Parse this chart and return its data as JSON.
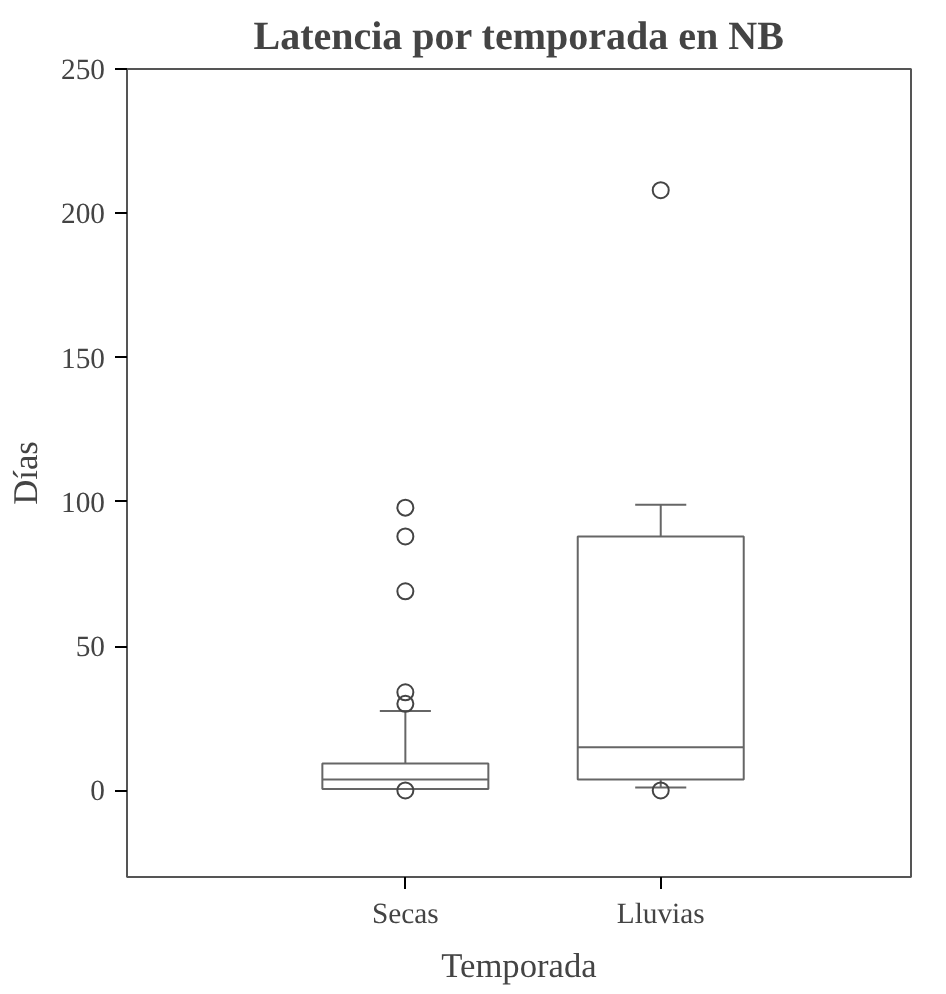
{
  "chart_data": {
    "type": "box",
    "title": "Latencia por temporada en NB",
    "xlabel": "Temporada",
    "ylabel": "Días",
    "categories": [
      "Secas",
      "Lluvias"
    ],
    "boxes": [
      {
        "low": 0.5,
        "q1": 0.5,
        "median": 3.8,
        "q3": 9.3,
        "high": 27.5,
        "outliers": [
          98,
          88,
          69,
          34,
          30,
          0
        ]
      },
      {
        "low": 1,
        "q1": 3.8,
        "median": 15,
        "q3": 88,
        "high": 99,
        "outliers": [
          208,
          0
        ]
      }
    ],
    "ylim": [
      -30,
      250
    ],
    "yticks": [
      0,
      50,
      100,
      150,
      200,
      250
    ],
    "grid": false
  }
}
